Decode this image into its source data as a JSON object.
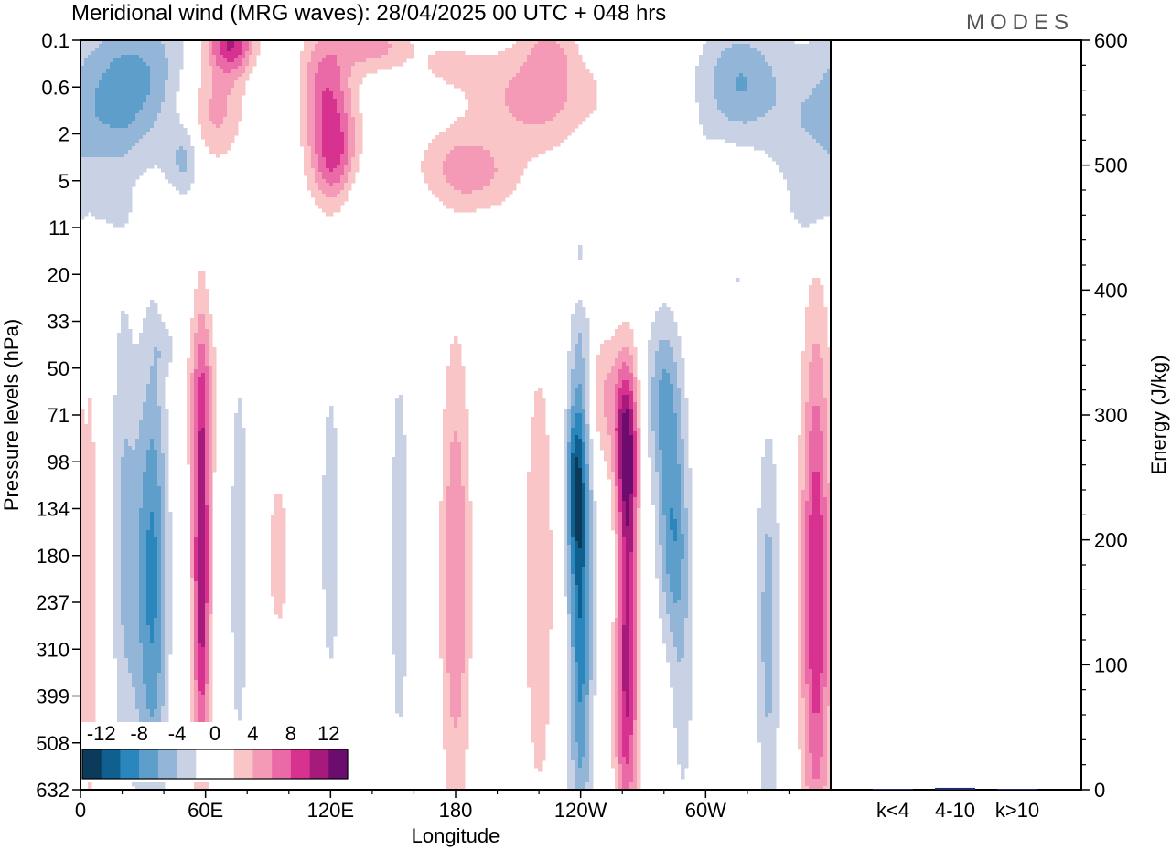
{
  "chart_data": {
    "type": "heatmap",
    "title": "Meridional wind (MRG waves):  28/04/2025  00 UTC  + 048 hrs",
    "logo": "MODES",
    "xlabel": "Longitude",
    "ylabel": "Pressure levels (hPa)",
    "y2label": "Energy (J/kg)",
    "x_ticks": [
      "0",
      "60E",
      "120E",
      "180",
      "120W",
      "60W"
    ],
    "y_ticks": [
      "0.1",
      "0.6",
      "2",
      "5",
      "11",
      "20",
      "33",
      "50",
      "71",
      "98",
      "134",
      "180",
      "237",
      "310",
      "399",
      "508",
      "632"
    ],
    "y2_ticks": [
      0,
      100,
      200,
      300,
      400,
      500,
      600
    ],
    "y2_range": [
      0,
      600
    ],
    "colorbar": {
      "tick_labels": [
        "-12",
        "-8",
        "-4",
        "0",
        "4",
        "8",
        "12"
      ],
      "colors": [
        "#0b3a5a",
        "#0f5f8f",
        "#2a86bd",
        "#5e9ecb",
        "#93b6d8",
        "#c9d1e4",
        "#ffffff",
        "#ffffff",
        "#f9c5c6",
        "#f49ab7",
        "#ea6aa8",
        "#d7328f",
        "#a61a7c",
        "#6b0c6e"
      ]
    },
    "energy_bars": {
      "categories": [
        "k<4",
        "4-10",
        "k>10"
      ],
      "values": [
        0.3,
        1.5,
        0.3
      ]
    },
    "features": [
      {
        "lon": 23,
        "lev": 1.0,
        "lw": 18,
        "lh": 1.2,
        "v": -7,
        "tilt": 0.35
      },
      {
        "lon": 35,
        "lev": 11.5,
        "lw": 5,
        "lh": 3.5,
        "v": -8,
        "tilt": 0
      },
      {
        "lon": 26,
        "lev": 11.5,
        "lw": 5,
        "lh": 3,
        "v": -3,
        "tilt": 0
      },
      {
        "lon": 58,
        "lev": 11.2,
        "lw": 3,
        "lh": 3.2,
        "v": 12,
        "tilt": 0
      },
      {
        "lon": 76,
        "lev": 11,
        "lw": 3,
        "lh": 3,
        "v": -4,
        "tilt": 0
      },
      {
        "lon": 58,
        "lev": 7.5,
        "lw": 7,
        "lh": 1.2,
        "v": 3,
        "tilt": 0
      },
      {
        "lon": 20,
        "lev": 10,
        "lw": 4,
        "lh": 4,
        "v": -3,
        "tilt": 0
      },
      {
        "lon": 95,
        "lev": 11,
        "lw": 4,
        "lh": 1.5,
        "v": 3,
        "tilt": 0
      },
      {
        "lon": 120,
        "lev": 10.5,
        "lw": 4,
        "lh": 3,
        "v": -3,
        "tilt": 0
      },
      {
        "lon": 153,
        "lev": 11,
        "lw": 3,
        "lh": 3,
        "v": -4,
        "tilt": 0
      },
      {
        "lon": 180,
        "lev": 11.5,
        "lw": 5,
        "lh": 3.5,
        "v": 6,
        "tilt": 0
      },
      {
        "lon": 220,
        "lev": 11.5,
        "lw": 5,
        "lh": 3.5,
        "v": 4,
        "tilt": 0
      },
      {
        "lon": 240,
        "lev": 11.5,
        "lw": 4,
        "lh": 4,
        "v": -10,
        "tilt": 0
      },
      {
        "lon": 237,
        "lev": 9.5,
        "lw": 3,
        "lh": 1.2,
        "v": -6,
        "tilt": 0
      },
      {
        "lon": 262,
        "lev": 8.6,
        "lw": 4,
        "lh": 1.3,
        "v": 12,
        "tilt": 0
      },
      {
        "lon": 251,
        "lev": 7.6,
        "lw": 6,
        "lh": 1.0,
        "v": 4,
        "tilt": 0
      },
      {
        "lon": 263,
        "lev": 11.2,
        "lw": 3,
        "lh": 1.8,
        "v": 6,
        "tilt": 0
      },
      {
        "lon": 262,
        "lev": 14.2,
        "lw": 4,
        "lh": 2.2,
        "v": 9,
        "tilt": 0
      },
      {
        "lon": 280,
        "lev": 7.6,
        "lw": 6,
        "lh": 1.3,
        "v": -6,
        "tilt": 0
      },
      {
        "lon": 284,
        "lev": 10.5,
        "lw": 5,
        "lh": 1.6,
        "v": -7,
        "tilt": 0
      },
      {
        "lon": 289,
        "lev": 13.5,
        "lw": 4,
        "lh": 2.5,
        "v": -3,
        "tilt": 0
      },
      {
        "lon": 308,
        "lev": 12,
        "lw": 3,
        "lh": 3,
        "v": 2,
        "tilt": 0
      },
      {
        "lon": 330,
        "lev": 12.5,
        "lw": 4,
        "lh": 3,
        "v": -5,
        "tilt": 0
      },
      {
        "lon": 353,
        "lev": 11.8,
        "lw": 5,
        "lh": 4,
        "v": 10,
        "tilt": 0
      },
      {
        "lon": 5,
        "lev": 12,
        "lw": 2,
        "lh": 4,
        "v": 3,
        "tilt": 0
      },
      {
        "lon": 65,
        "lev": 1.5,
        "lw": 12,
        "lh": 0.8,
        "v": 5,
        "tilt": 0.3
      },
      {
        "lon": 72,
        "lev": 0.0,
        "lw": 8,
        "lh": 0.5,
        "v": 10,
        "tilt": 0
      },
      {
        "lon": 117,
        "lev": 1.0,
        "lw": 9,
        "lh": 0.9,
        "v": 7,
        "tilt": 0
      },
      {
        "lon": 122,
        "lev": 2.5,
        "lw": 8,
        "lh": 0.8,
        "v": 8,
        "tilt": 0
      },
      {
        "lon": 186,
        "lev": 2.8,
        "lw": 16,
        "lh": 0.6,
        "v": 5,
        "tilt": -0.35
      },
      {
        "lon": 219,
        "lev": 1.2,
        "lw": 22,
        "lh": 0.8,
        "v": 5,
        "tilt": 0
      },
      {
        "lon": 140,
        "lev": 0.1,
        "lw": 12,
        "lh": 0.4,
        "v": 5,
        "tilt": 0
      },
      {
        "lon": 175,
        "lev": 0.5,
        "lw": 12,
        "lh": 0.4,
        "v": 2,
        "tilt": 0
      },
      {
        "lon": 225,
        "lev": 0.2,
        "lw": 8,
        "lh": 0.4,
        "v": 3,
        "tilt": 0
      },
      {
        "lon": 50,
        "lev": 2.5,
        "lw": 6,
        "lh": 0.6,
        "v": -5,
        "tilt": 0
      },
      {
        "lon": 20,
        "lev": 3.8,
        "lw": 16,
        "lh": 0.4,
        "v": -2,
        "tilt": -0.3
      },
      {
        "lon": 92,
        "lev": 1.2,
        "lw": 14,
        "lh": 0.7,
        "v": -2,
        "tilt": 0
      },
      {
        "lon": 132,
        "lev": 3.5,
        "lw": 6,
        "lh": 0.8,
        "v": -2,
        "tilt": 0
      },
      {
        "lon": 316,
        "lev": 0.9,
        "lw": 14,
        "lh": 0.9,
        "v": -6,
        "tilt": 0
      },
      {
        "lon": 350,
        "lev": 2.0,
        "lw": 14,
        "lh": 1.5,
        "v": -3,
        "tilt": 0
      },
      {
        "lon": 294,
        "lev": 2.6,
        "lw": 8,
        "lh": 0.5,
        "v": -2,
        "tilt": 0
      },
      {
        "lon": 303,
        "lev": 2.9,
        "lw": 9,
        "lh": 0.4,
        "v": 2,
        "tilt": 0
      },
      {
        "lon": 35,
        "lev": 4.0,
        "lw": 16,
        "lh": 0.4,
        "v": 2,
        "tilt": 0
      },
      {
        "lon": 245,
        "lev": 5.3,
        "lw": 8,
        "lh": 0.35,
        "v": 2,
        "tilt": 0
      },
      {
        "lon": 160,
        "lev": 6.6,
        "lw": 5,
        "lh": 0.35,
        "v": 2,
        "tilt": 0
      },
      {
        "lon": 42,
        "lev": 6.6,
        "lw": 5,
        "lh": 0.35,
        "v": -2,
        "tilt": 0
      },
      {
        "lon": 315,
        "lev": 5.1,
        "lw": 6,
        "lh": 0.3,
        "v": -2,
        "tilt": 0
      },
      {
        "lon": 350,
        "lev": 3.7,
        "lw": 5,
        "lh": 0.3,
        "v": -2,
        "tilt": 0
      }
    ]
  }
}
